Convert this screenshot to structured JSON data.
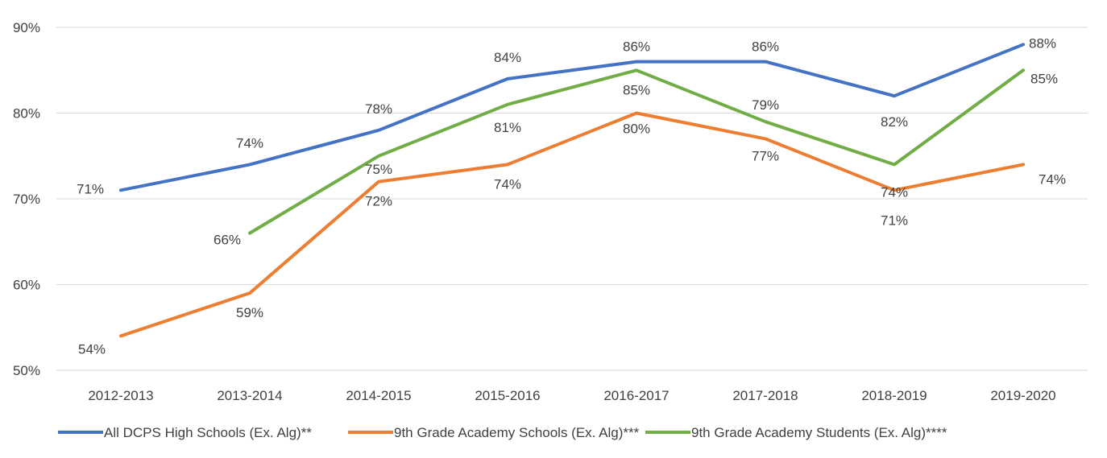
{
  "chart_data": {
    "type": "line",
    "title": "",
    "xlabel": "",
    "ylabel": "",
    "ylim": [
      50,
      90
    ],
    "yticks": [
      "50%",
      "60%",
      "70%",
      "80%",
      "90%"
    ],
    "categories": [
      "2012-2013",
      "2013-2014",
      "2014-2015",
      "2015-2016",
      "2016-2017",
      "2017-2018",
      "2018-2019",
      "2019-2020"
    ],
    "grid": true,
    "legend_position": "bottom",
    "series": [
      {
        "name": "All DCPS High Schools (Ex. Alg)**",
        "color": "#4472C4",
        "values": [
          71,
          74,
          78,
          84,
          86,
          86,
          82,
          88
        ],
        "labels": [
          "71%",
          "74%",
          "78%",
          "84%",
          "86%",
          "86%",
          "82%",
          "88%"
        ]
      },
      {
        "name": "9th Grade Academy Schools (Ex. Alg)***",
        "color": "#ED7D31",
        "values": [
          54,
          59,
          72,
          74,
          80,
          77,
          71,
          74
        ],
        "labels": [
          "54%",
          "59%",
          "72%",
          "74%",
          "80%",
          "77%",
          "71%",
          "74%"
        ]
      },
      {
        "name": "9th Grade Academy Students (Ex. Alg)****",
        "color": "#70AD47",
        "values": [
          null,
          66,
          75,
          81,
          85,
          79,
          74,
          85
        ],
        "labels": [
          null,
          "66%",
          "75%",
          "81%",
          "85%",
          "79%",
          "74%",
          "85%"
        ]
      }
    ]
  }
}
